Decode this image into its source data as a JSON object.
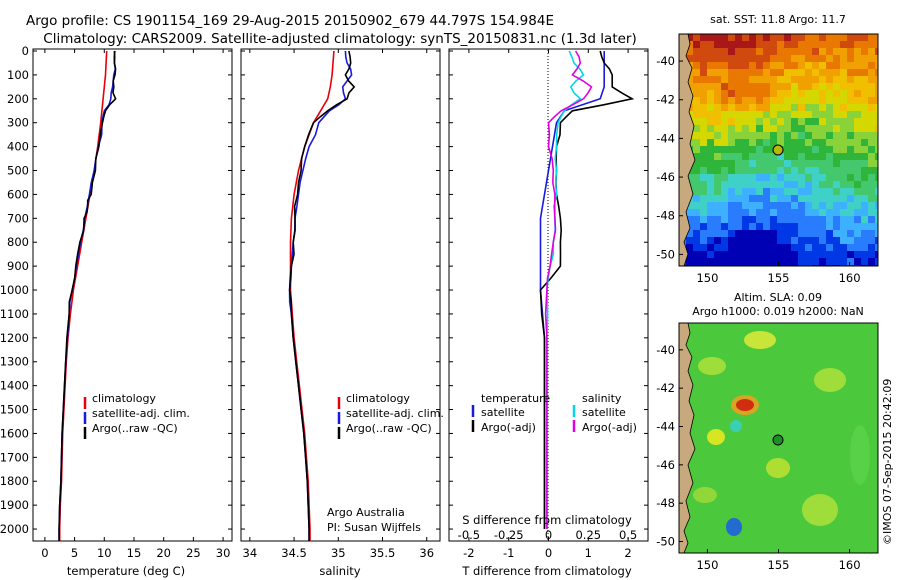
{
  "header": {
    "line1": "Argo profile: CS 1901154_169 29-Aug-2015 20150902_679 44.797S 154.984E",
    "line2": "Climatology: CARS2009. Satellite-adjusted climatology: synTS_20150831.nc (1.3d later)"
  },
  "colors": {
    "climatology": "#e8000b",
    "satellite": "#1a1adc",
    "argo": "#000000",
    "sat_salinity": "#00d8e8",
    "argo_salinity": "#e000e0"
  },
  "depth_ticks": [
    "0",
    "100",
    "200",
    "300",
    "400",
    "500",
    "600",
    "700",
    "800",
    "900",
    "1000",
    "1100",
    "1200",
    "1300",
    "1400",
    "1500",
    "1600",
    "1700",
    "1800",
    "1900",
    "2000"
  ],
  "panel_temperature": {
    "xlabel": "temperature (deg C)",
    "xticks": [
      "0",
      "5",
      "10",
      "15",
      "20",
      "25",
      "30"
    ],
    "legend": [
      "climatology",
      "satellite-adj. clim.",
      "Argo(..raw -QC)"
    ]
  },
  "panel_salinity": {
    "xlabel": "salinity",
    "xticks": [
      "34",
      "34.5",
      "35",
      "35.5",
      "36"
    ],
    "legend": [
      "climatology",
      "satellite-adj. clim.",
      "Argo(..raw -QC)"
    ],
    "note_line1": "Argo Australia",
    "note_line2": "PI: Susan Wijffels"
  },
  "panel_difference": {
    "xlabel_bottom": "T difference from climatology",
    "xlabel_top": "S difference from climatology",
    "xticks_T": [
      "-2",
      "-1",
      "0",
      "1",
      "2"
    ],
    "xticks_S": [
      "-0.5",
      "-0.25",
      "0",
      "0.25",
      "0.5"
    ],
    "legend_temperature_title": "temperature",
    "legend_temperature": [
      "satellite",
      "Argo(-adj)"
    ],
    "legend_salinity_title": "salinity",
    "legend_salinity": [
      "satellite",
      "Argo(-adj)"
    ]
  },
  "map_sst": {
    "title": "sat. SST: 11.8  Argo: 11.7",
    "yticks": [
      "-40",
      "-42",
      "-44",
      "-46",
      "-48",
      "-50"
    ],
    "xticks": [
      "150",
      "155",
      "160"
    ]
  },
  "map_sla": {
    "title_line1": "Altim. SLA: 0.09",
    "title_line2": "Argo h1000: 0.019 h2000: NaN",
    "yticks": [
      "-40",
      "-42",
      "-44",
      "-46",
      "-48",
      "-50"
    ],
    "xticks": [
      "150",
      "155",
      "160"
    ]
  },
  "credit": "©IMOS 07-Sep-2015 20:42:09",
  "chart_data": [
    {
      "type": "line",
      "xlabel": "temperature (deg C)",
      "ylabel": "",
      "xlim": [
        -2,
        31.5
      ],
      "ylim": [
        2050,
        0
      ],
      "series": [
        {
          "name": "climatology",
          "depth": [
            0,
            50,
            100,
            150,
            200,
            250,
            300,
            400,
            500,
            600,
            700,
            800,
            900,
            1000,
            1100,
            1200,
            1300,
            1400,
            1500,
            1600,
            1700,
            1800,
            1900,
            2000,
            2050
          ],
          "values": [
            10.4,
            10.3,
            10.2,
            10.0,
            9.8,
            9.6,
            9.4,
            8.9,
            8.3,
            7.6,
            6.9,
            6.2,
            5.5,
            4.8,
            4.3,
            3.9,
            3.6,
            3.4,
            3.2,
            3.0,
            2.9,
            2.8,
            2.6,
            2.5,
            2.5
          ]
        },
        {
          "name": "satellite-adj. clim.",
          "depth": [
            0,
            50,
            100,
            150,
            200,
            250,
            300,
            400,
            500,
            600,
            700,
            800,
            900,
            1000,
            1100,
            1200,
            1300,
            1400,
            1500,
            1600,
            1700,
            1800,
            1900,
            2000,
            2050
          ],
          "values": [
            11.8,
            11.7,
            11.6,
            11.4,
            11.1,
            10.0,
            9.6,
            9.0,
            8.3,
            7.5,
            6.7,
            6.0,
            5.3,
            4.6,
            4.1,
            3.8,
            3.5,
            3.3,
            3.1,
            2.9,
            2.8,
            2.7,
            2.5,
            2.4,
            2.4
          ]
        },
        {
          "name": "Argo(..raw -QC)",
          "depth": [
            0,
            50,
            100,
            150,
            200,
            250,
            300,
            400,
            500,
            600,
            650,
            700,
            800,
            900,
            1000,
            1100,
            1200,
            1300,
            1400,
            1500,
            1600,
            1700,
            1800,
            1900,
            2000,
            2050
          ],
          "values": [
            11.7,
            11.7,
            11.8,
            11.6,
            11.9,
            10.2,
            9.7,
            9.1,
            8.5,
            7.8,
            7.2,
            6.6,
            5.9,
            5.2,
            4.6,
            4.1,
            3.7,
            3.5,
            3.3,
            3.1,
            2.9,
            2.8,
            2.7,
            2.5,
            2.4,
            2.4
          ]
        }
      ]
    },
    {
      "type": "line",
      "xlabel": "salinity",
      "ylabel": "",
      "xlim": [
        33.9,
        36.15
      ],
      "ylim": [
        2050,
        0
      ],
      "series": [
        {
          "name": "climatology",
          "depth": [
            0,
            50,
            100,
            150,
            200,
            250,
            300,
            400,
            500,
            600,
            700,
            800,
            900,
            1000,
            1100,
            1200,
            1300,
            1400,
            1500,
            1600,
            1700,
            1800,
            1900,
            2000,
            2050
          ],
          "values": [
            34.95,
            34.94,
            34.93,
            34.91,
            34.88,
            34.8,
            34.72,
            34.62,
            34.55,
            34.5,
            34.47,
            34.46,
            34.46,
            34.46,
            34.48,
            34.5,
            34.53,
            34.56,
            34.59,
            34.62,
            34.64,
            34.66,
            34.67,
            34.68,
            34.68
          ]
        },
        {
          "name": "satellite-adj. clim.",
          "depth": [
            0,
            50,
            100,
            150,
            200,
            250,
            300,
            400,
            500,
            600,
            700,
            800,
            900,
            1000,
            1100,
            1200,
            1300,
            1400,
            1500,
            1600,
            1700,
            1800,
            1900,
            2000,
            2050
          ],
          "values": [
            35.08,
            35.1,
            35.15,
            35.05,
            35.08,
            34.9,
            34.78,
            34.67,
            34.6,
            34.55,
            34.51,
            34.49,
            34.47,
            34.45,
            34.47,
            34.49,
            34.52,
            34.55,
            34.58,
            34.61,
            34.63,
            34.65,
            34.66,
            34.67,
            34.67
          ]
        },
        {
          "name": "Argo(..raw -QC)",
          "depth": [
            0,
            50,
            100,
            150,
            200,
            250,
            300,
            400,
            500,
            600,
            700,
            800,
            900,
            1000,
            1100,
            1200,
            1300,
            1400,
            1500,
            1600,
            1700,
            1800,
            1900,
            2000,
            2050
          ],
          "values": [
            35.12,
            35.14,
            35.08,
            35.18,
            35.1,
            34.88,
            34.72,
            34.62,
            34.58,
            34.54,
            34.51,
            34.49,
            34.47,
            34.45,
            34.47,
            34.49,
            34.52,
            34.55,
            34.58,
            34.61,
            34.63,
            34.65,
            34.66,
            34.67,
            34.67
          ]
        }
      ]
    },
    {
      "type": "line",
      "xlabel": "T difference from climatology",
      "ylabel": "",
      "xlim": [
        -2.5,
        2.5
      ],
      "ylim": [
        2050,
        0
      ],
      "x2label": "S difference from climatology",
      "x2lim": [
        -0.625,
        0.625
      ],
      "series": [
        {
          "name": "temperature satellite",
          "axis": "T",
          "depth": [
            0,
            50,
            100,
            150,
            200,
            250,
            300,
            400,
            500,
            600,
            700,
            800,
            900,
            1000,
            1200,
            1400,
            1600,
            1800,
            2000
          ],
          "values": [
            1.4,
            1.4,
            1.4,
            1.4,
            1.3,
            0.4,
            0.2,
            0.1,
            0.0,
            -0.1,
            -0.2,
            -0.2,
            -0.2,
            -0.2,
            -0.1,
            -0.1,
            -0.1,
            -0.1,
            -0.1
          ]
        },
        {
          "name": "temperature Argo(-adj)",
          "axis": "T",
          "depth": [
            0,
            50,
            100,
            150,
            200,
            250,
            300,
            400,
            500,
            600,
            700,
            800,
            900,
            1000,
            1200,
            1400,
            1600,
            1800,
            2000
          ],
          "values": [
            1.3,
            1.4,
            1.6,
            1.6,
            2.1,
            0.6,
            0.3,
            0.2,
            0.2,
            0.2,
            0.3,
            0.3,
            0.3,
            -0.2,
            -0.1,
            -0.1,
            -0.1,
            -0.1,
            -0.1
          ]
        },
        {
          "name": "salinity satellite",
          "axis": "S",
          "depth": [
            0,
            50,
            100,
            150,
            200,
            250,
            300,
            400,
            500,
            600,
            700,
            800,
            900,
            1000,
            1200,
            1400,
            1600,
            1800,
            2000
          ],
          "values": [
            0.13,
            0.16,
            0.22,
            0.14,
            0.2,
            0.1,
            0.06,
            0.05,
            0.05,
            0.05,
            0.04,
            0.03,
            0.01,
            -0.01,
            -0.01,
            -0.01,
            -0.01,
            -0.01,
            -0.01
          ]
        },
        {
          "name": "salinity Argo(-adj)",
          "axis": "S",
          "depth": [
            0,
            50,
            100,
            150,
            200,
            250,
            300,
            400,
            500,
            600,
            700,
            800,
            900,
            1000,
            1200,
            1400,
            1600,
            1800,
            2000
          ],
          "values": [
            0.17,
            0.2,
            0.15,
            0.27,
            0.22,
            0.08,
            0.0,
            0.0,
            0.03,
            0.04,
            0.04,
            0.03,
            0.01,
            -0.01,
            -0.01,
            -0.01,
            -0.01,
            -0.01,
            -0.01
          ]
        }
      ]
    },
    {
      "type": "heatmap",
      "title": "sat. SST: 11.8  Argo: 11.7",
      "xlim": [
        148,
        162
      ],
      "ylim": [
        -50.6,
        -38.6
      ],
      "xticks": [
        150,
        155,
        160
      ],
      "yticks": [
        -40,
        -42,
        -44,
        -46,
        -48,
        -50
      ],
      "argo_position": {
        "lon": 154.984,
        "lat": -44.797
      }
    },
    {
      "type": "heatmap",
      "title": "Altim. SLA: 0.09  Argo h1000: 0.019 h2000: NaN",
      "xlim": [
        148,
        162
      ],
      "ylim": [
        -50.6,
        -38.6
      ],
      "xticks": [
        150,
        155,
        160
      ],
      "yticks": [
        -40,
        -42,
        -44,
        -46,
        -48,
        -50
      ],
      "argo_position": {
        "lon": 154.984,
        "lat": -44.797
      }
    }
  ]
}
